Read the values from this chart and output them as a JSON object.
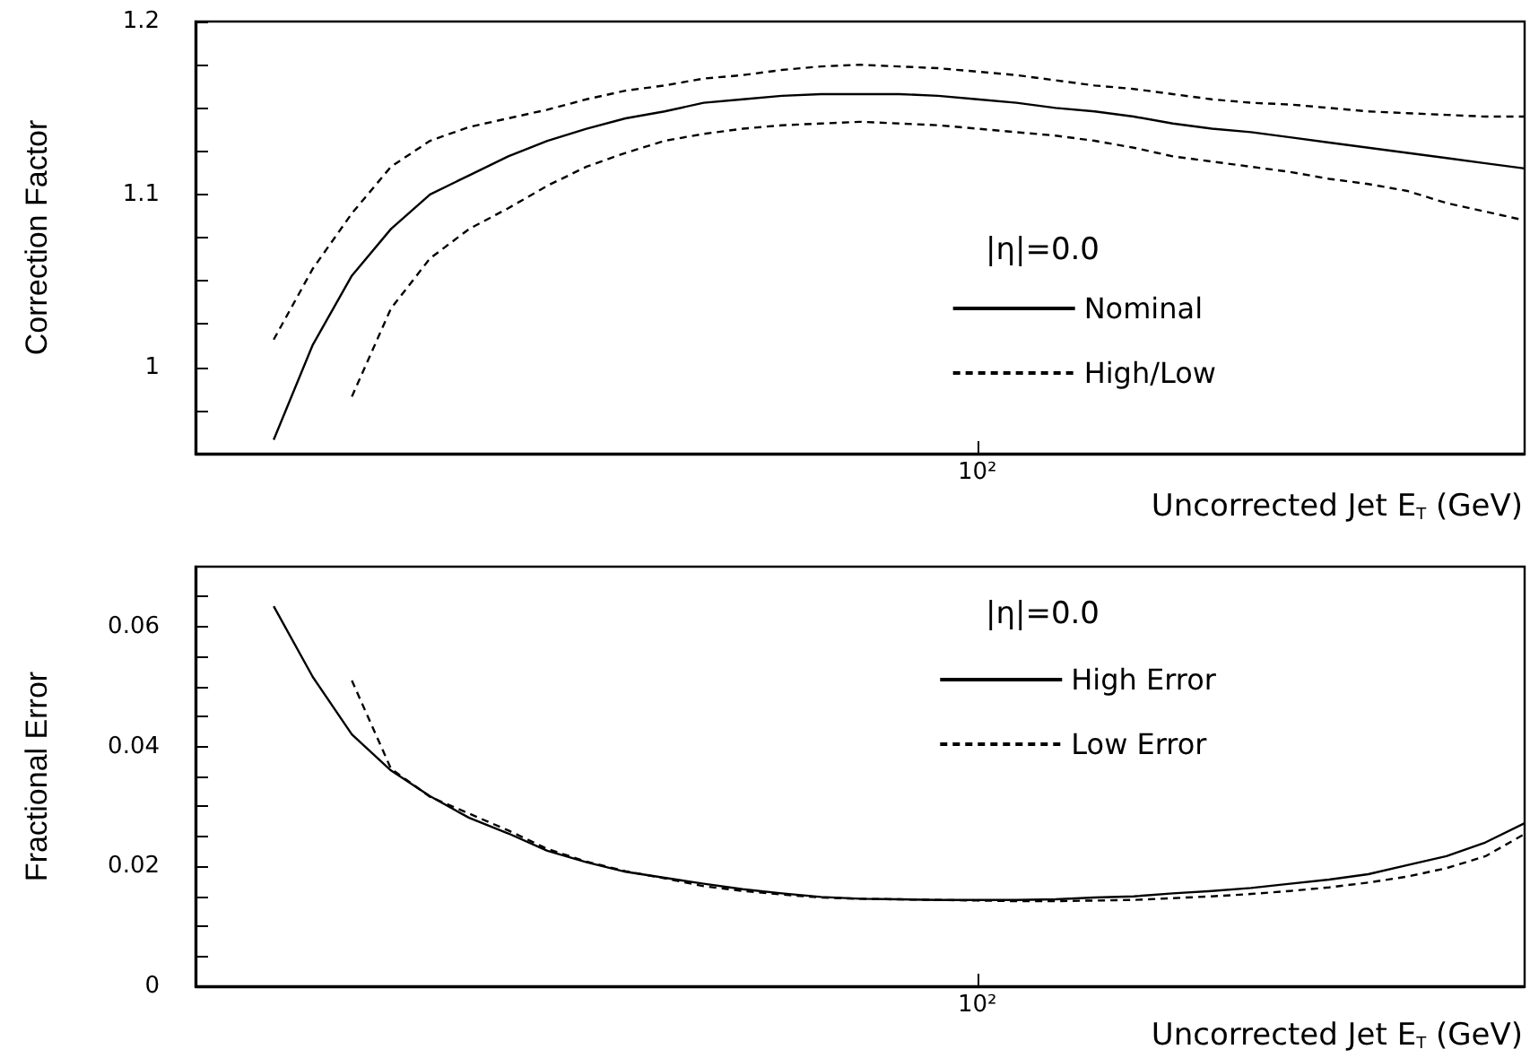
{
  "chart_data": [
    {
      "type": "line",
      "ylabel": "Correction Factor",
      "xlabel": "Uncorrected Jet E$_{T}$ (GeV)",
      "annotations": [
        "|η|=0.0"
      ],
      "legend": "bottom right",
      "marker": "none",
      "grid": false,
      "categories": [
        null,
        null,
        null,
        null,
        null,
        null,
        null,
        null,
        null,
        null,
        null,
        null,
        null,
        null,
        null,
        null,
        null,
        null,
        null,
        null,
        "10²",
        null,
        null,
        null,
        null,
        null,
        null,
        null,
        null,
        null,
        null,
        null,
        null,
        null,
        null
      ],
      "ylim": [
        0.95,
        1.2
      ],
      "yticks": [
        {
          "value": 0.975,
          "label": null
        },
        {
          "value": 1,
          "label": "1"
        },
        {
          "value": 1.025,
          "label": null
        },
        {
          "value": 1.05,
          "label": null
        },
        {
          "value": 1.075,
          "label": null
        },
        {
          "value": 1.1,
          "label": "1.1"
        },
        {
          "value": 1.125,
          "label": null
        },
        {
          "value": 1.15,
          "label": null
        },
        {
          "value": 1.175,
          "label": null
        },
        {
          "value": 1.2,
          "label": "1.2"
        }
      ],
      "series": [
        {
          "name": "Nominal",
          "color": "#000000",
          "line_style": "solid",
          "values": [
            null,
            null,
            0.958,
            1.013,
            1.053,
            1.08,
            1.1,
            1.111,
            1.122,
            1.131,
            1.138,
            1.144,
            1.148,
            1.153,
            1.155,
            1.157,
            1.158,
            1.158,
            1.158,
            1.157,
            1.155,
            1.153,
            1.15,
            1.148,
            1.145,
            1.141,
            1.138,
            1.136,
            1.133,
            1.13,
            1.127,
            1.124,
            1.121,
            1.118,
            1.115
          ]
        },
        {
          "name": "High/Low",
          "color": "#000000",
          "line_style": "dashed",
          "values": [
            null,
            null,
            1.016,
            1.057,
            1.089,
            1.116,
            1.131,
            1.139,
            1.144,
            1.149,
            1.155,
            1.16,
            1.163,
            1.167,
            1.169,
            1.172,
            1.174,
            1.175,
            1.174,
            1.173,
            1.171,
            1.169,
            1.166,
            1.163,
            1.161,
            1.158,
            1.155,
            1.153,
            1.152,
            1.15,
            1.148,
            1.147,
            1.146,
            1.145,
            1.145
          ]
        },
        {
          "color": "#000000",
          "line_style": "dashed",
          "values": [
            null,
            null,
            null,
            null,
            0.983,
            1.034,
            1.063,
            1.08,
            1.092,
            1.105,
            1.116,
            1.124,
            1.131,
            1.135,
            1.138,
            1.14,
            1.141,
            1.142,
            1.141,
            1.14,
            1.138,
            1.136,
            1.134,
            1.131,
            1.127,
            1.122,
            1.119,
            1.116,
            1.113,
            1.109,
            1.106,
            1.102,
            1.095,
            1.09,
            1.085
          ]
        }
      ]
    },
    {
      "type": "line",
      "ylabel": "Fractional Error",
      "xlabel": "Uncorrected Jet E$_{T}$ (GeV)",
      "annotations": [
        "|η|=0.0"
      ],
      "legend": "top right",
      "marker": "none",
      "grid": false,
      "categories": [
        null,
        null,
        null,
        null,
        null,
        null,
        null,
        null,
        null,
        null,
        null,
        null,
        null,
        null,
        null,
        null,
        null,
        null,
        null,
        null,
        "10²",
        null,
        null,
        null,
        null,
        null,
        null,
        null,
        null,
        null,
        null,
        null,
        null,
        null,
        null
      ],
      "ylim": [
        0,
        0.07
      ],
      "yticks": [
        {
          "value": 0,
          "label": "0"
        },
        {
          "value": 0.005,
          "label": null
        },
        {
          "value": 0.01,
          "label": null
        },
        {
          "value": 0.015,
          "label": null
        },
        {
          "value": 0.02,
          "label": "0.02"
        },
        {
          "value": 0.025,
          "label": null
        },
        {
          "value": 0.03,
          "label": null
        },
        {
          "value": 0.035,
          "label": null
        },
        {
          "value": 0.04,
          "label": "0.04"
        },
        {
          "value": 0.045,
          "label": null
        },
        {
          "value": 0.05,
          "label": null
        },
        {
          "value": 0.055,
          "label": null
        },
        {
          "value": 0.06,
          "label": "0.06"
        },
        {
          "value": 0.065,
          "label": null
        }
      ],
      "series": [
        {
          "name": "High Error",
          "color": "#000000",
          "line_style": "solid",
          "values": [
            null,
            null,
            0.0634,
            0.0516,
            0.042,
            0.036,
            0.0317,
            0.0281,
            0.0255,
            0.0226,
            0.0207,
            0.0191,
            0.0181,
            0.0171,
            0.0162,
            0.0155,
            0.0149,
            0.0146,
            0.0145,
            0.0144,
            0.0144,
            0.0144,
            0.0145,
            0.0148,
            0.015,
            0.0155,
            0.0159,
            0.0164,
            0.0171,
            0.0178,
            0.0187,
            0.0202,
            0.0217,
            0.024,
            0.0272
          ]
        },
        {
          "name": "Low Error",
          "color": "#000000",
          "line_style": "dashed",
          "values": [
            null,
            null,
            null,
            null,
            0.051,
            0.0363,
            0.0316,
            0.0288,
            0.026,
            0.0229,
            0.0208,
            0.0192,
            0.018,
            0.0167,
            0.0159,
            0.0153,
            0.0148,
            0.0146,
            0.0145,
            0.0144,
            0.0143,
            0.0142,
            0.0142,
            0.0143,
            0.0144,
            0.0147,
            0.015,
            0.0154,
            0.0159,
            0.0165,
            0.0173,
            0.0183,
            0.0197,
            0.0217,
            0.0254
          ]
        }
      ]
    }
  ]
}
